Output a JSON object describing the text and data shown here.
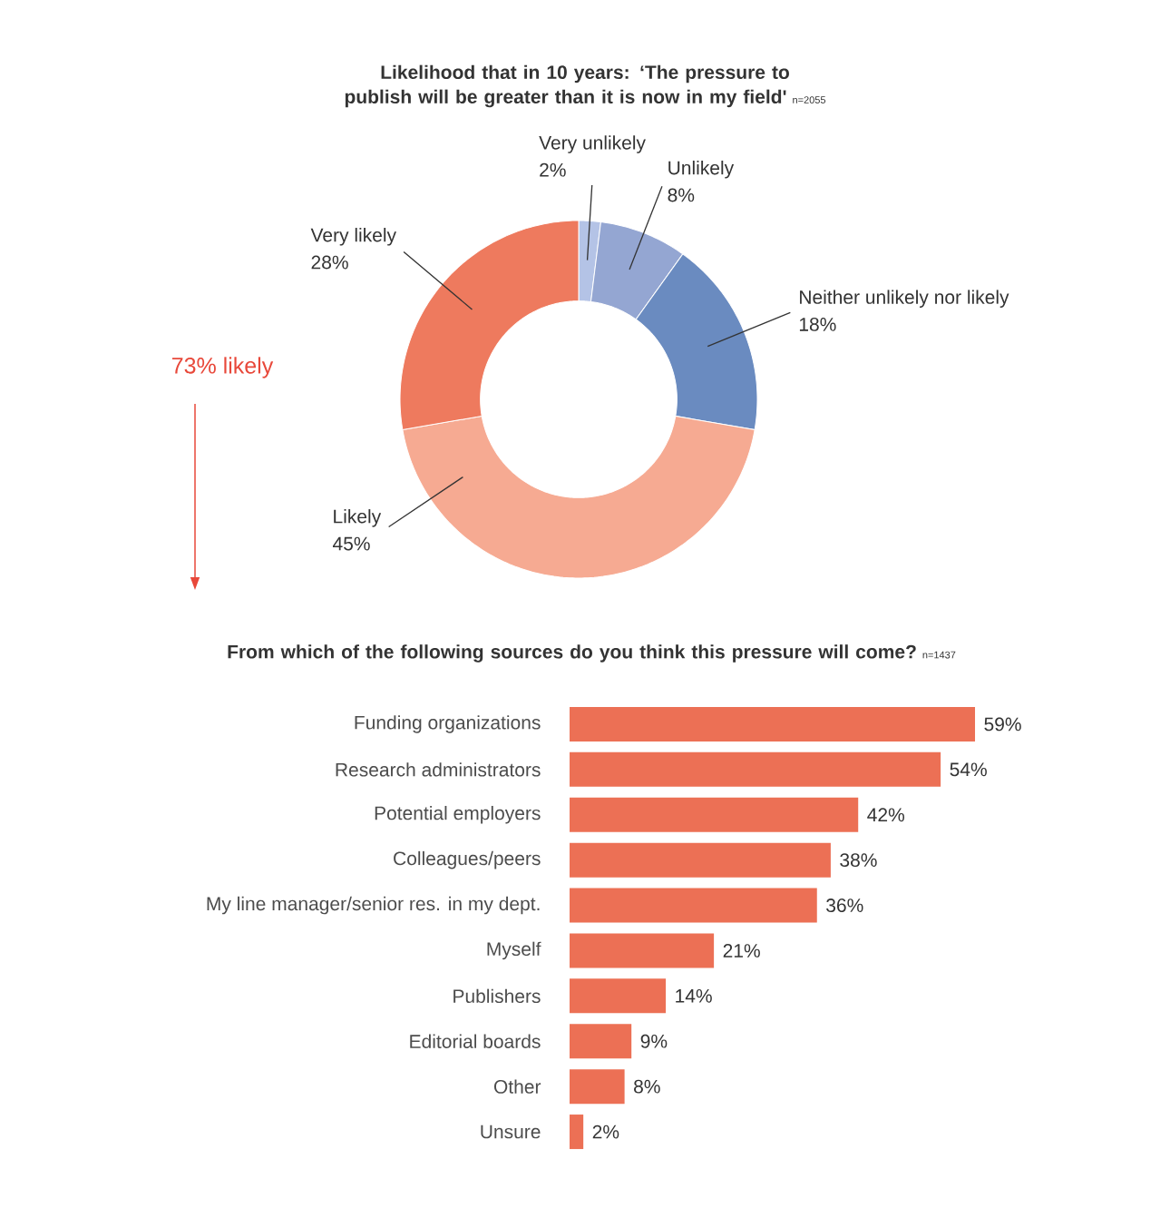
{
  "chart_data": [
    {
      "type": "donut",
      "title": "Likelihood that in 10 years: ‘The pressure to publish will be greater than it is now in my field'",
      "subtitle": "n=2055",
      "categories": [
        "Very unlikely",
        "Unlikely",
        "Neither unlikely nor likely",
        "Likely",
        "Very likely"
      ],
      "values": [
        2,
        8,
        18,
        45,
        28
      ],
      "value_labels": [
        "2%",
        "8%",
        "18%",
        "45%",
        "28%"
      ],
      "colors": [
        "#b4c3e6",
        "#94a6d2",
        "#6a8bc0",
        "#f6aa92",
        "#ee7a5e"
      ],
      "annotations": [
        "73% likely"
      ]
    },
    {
      "type": "bar",
      "orientation": "horizontal",
      "title": "From which of the following sources do you think this pressure will come?",
      "subtitle": "n=1437",
      "categories": [
        "Funding organizations",
        "Research administrators",
        "Potential employers",
        "Colleagues/peers",
        "My line manager/senior res. in my dept.",
        "Myself",
        "Publishers",
        "Editorial boards",
        "Other",
        "Unsure"
      ],
      "values": [
        59,
        54,
        42,
        38,
        36,
        21,
        14,
        9,
        8,
        2
      ],
      "value_labels": [
        "59%",
        "54%",
        "42%",
        "38%",
        "36%",
        "21%",
        "14%",
        "9%",
        "8%",
        "2%"
      ],
      "color": "#ec7055"
    }
  ]
}
